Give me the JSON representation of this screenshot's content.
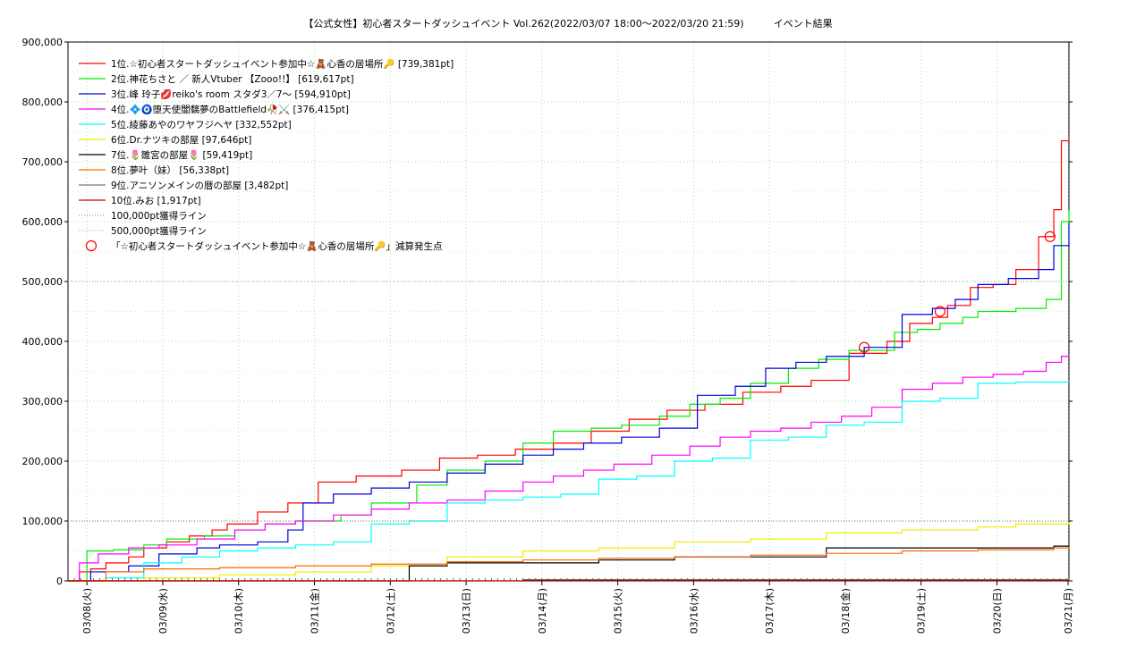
{
  "chart_data": {
    "type": "line",
    "title": "【公式女性】初心者スタートダッシュイベント Vol.262(2022/03/07 18:00～2022/03/20 21:59)　　　イベント結果",
    "xlabel": "",
    "ylabel": "",
    "xlim": [
      0,
      13.2
    ],
    "ylim": [
      0,
      900000
    ],
    "grid": true,
    "legend_position": "top-left",
    "x_tick_labels": [
      "03/08(火)",
      "03/09(水)",
      "03/10(木)",
      "03/11(金)",
      "03/12(土)",
      "03/13(日)",
      "03/14(月)",
      "03/15(火)",
      "03/16(水)",
      "03/17(木)",
      "03/18(金)",
      "03/19(土)",
      "03/20(日)",
      "03/21(月)"
    ],
    "x_tick_values": [
      0.25,
      1.25,
      2.25,
      3.25,
      4.25,
      5.25,
      6.25,
      7.25,
      8.25,
      9.25,
      10.25,
      11.25,
      12.25,
      13.25
    ],
    "y_ticks": [
      0,
      100000,
      200000,
      300000,
      400000,
      500000,
      600000,
      700000,
      800000,
      900000
    ],
    "y_tick_labels": [
      "0",
      "100,000",
      "200,000",
      "300,000",
      "400,000",
      "500,000",
      "600,000",
      "700,000",
      "800,000",
      "900,000"
    ],
    "series": [
      {
        "name": "1位.☆初心者スタートダッシュイベント参加中☆🧸心香の居場所🔑 [739,381pt]",
        "color": "#ff0000",
        "x": [
          0,
          0.15,
          0.3,
          0.5,
          0.8,
          1.0,
          1.3,
          1.6,
          1.9,
          2.1,
          2.5,
          2.9,
          3.3,
          3.8,
          4.4,
          4.9,
          5.4,
          5.9,
          6.4,
          6.9,
          7.4,
          7.9,
          8.4,
          8.9,
          9.4,
          9.8,
          10.3,
          10.8,
          11.1,
          11.4,
          11.6,
          11.9,
          12.2,
          12.5,
          12.8,
          13.0,
          13.1,
          13.2
        ],
        "y": [
          0,
          15000,
          20000,
          30000,
          40000,
          55000,
          65000,
          75000,
          85000,
          95000,
          115000,
          130000,
          165000,
          175000,
          185000,
          205000,
          210000,
          220000,
          230000,
          250000,
          270000,
          285000,
          295000,
          315000,
          325000,
          335000,
          380000,
          400000,
          430000,
          440000,
          460000,
          490000,
          495000,
          520000,
          575000,
          620000,
          735000,
          739381
        ]
      },
      {
        "name": "2位.神花ちさと ／ 新人Vtuber 【Zooo!!】 [619,617pt]",
        "color": "#00ee00",
        "x": [
          0,
          0.25,
          0.6,
          1.0,
          1.3,
          1.8,
          2.2,
          2.6,
          3.0,
          3.6,
          4.0,
          4.6,
          5.0,
          5.5,
          6.0,
          6.4,
          6.9,
          7.3,
          7.8,
          8.2,
          8.6,
          9.0,
          9.5,
          9.9,
          10.3,
          10.9,
          11.2,
          11.5,
          11.8,
          12.0,
          12.5,
          12.9,
          13.1,
          13.2
        ],
        "y": [
          0,
          50000,
          52000,
          60000,
          70000,
          75000,
          85000,
          95000,
          100000,
          110000,
          130000,
          160000,
          185000,
          200000,
          230000,
          250000,
          255000,
          260000,
          275000,
          295000,
          305000,
          330000,
          355000,
          370000,
          385000,
          415000,
          420000,
          430000,
          440000,
          450000,
          455000,
          470000,
          600000,
          619617
        ]
      },
      {
        "name": "3位.峰 玲子💋reiko's room スタダ3／7〜 [594,910pt]",
        "color": "#0000dd",
        "x": [
          0,
          0.3,
          0.8,
          1.2,
          1.7,
          2.0,
          2.5,
          2.9,
          3.1,
          3.5,
          4.0,
          4.5,
          5.0,
          5.5,
          6.0,
          6.4,
          6.8,
          7.3,
          7.8,
          8.3,
          8.8,
          9.2,
          9.6,
          10.0,
          10.5,
          11.0,
          11.4,
          11.7,
          12.0,
          12.4,
          12.8,
          13.0,
          13.2
        ],
        "y": [
          0,
          15000,
          25000,
          45000,
          55000,
          60000,
          65000,
          85000,
          130000,
          145000,
          155000,
          165000,
          180000,
          195000,
          210000,
          220000,
          230000,
          240000,
          255000,
          310000,
          325000,
          355000,
          365000,
          375000,
          390000,
          445000,
          455000,
          470000,
          495000,
          505000,
          520000,
          560000,
          594910
        ]
      },
      {
        "name": "4位.💠🧿堕天使闇黐夢のBattlefield🥀⚔️ [376,415pt]",
        "color": "#ff00ff",
        "x": [
          0,
          0.15,
          0.4,
          0.8,
          1.2,
          1.7,
          2.2,
          2.6,
          3.0,
          3.5,
          4.0,
          4.5,
          5.0,
          5.5,
          6.0,
          6.4,
          6.8,
          7.2,
          7.7,
          8.2,
          8.6,
          9.0,
          9.4,
          9.8,
          10.2,
          10.6,
          11.0,
          11.4,
          11.8,
          12.2,
          12.6,
          12.9,
          13.1,
          13.2
        ],
        "y": [
          0,
          30000,
          45000,
          55000,
          60000,
          70000,
          85000,
          95000,
          100000,
          110000,
          120000,
          130000,
          135000,
          150000,
          165000,
          175000,
          185000,
          195000,
          210000,
          225000,
          240000,
          250000,
          255000,
          265000,
          275000,
          290000,
          320000,
          330000,
          340000,
          345000,
          350000,
          365000,
          375000,
          376415
        ]
      },
      {
        "name": "5位.綾藤あやのワヤフジヘヤ [332,552pt]",
        "color": "#00ffff",
        "x": [
          0,
          0.5,
          1.0,
          1.5,
          2.0,
          2.5,
          3.0,
          3.5,
          4.0,
          4.5,
          5.0,
          5.5,
          6.0,
          6.5,
          7.0,
          7.5,
          8.0,
          8.5,
          9.0,
          9.5,
          10.0,
          10.5,
          11.0,
          11.5,
          12.0,
          12.5,
          13.2
        ],
        "y": [
          0,
          5000,
          30000,
          40000,
          50000,
          55000,
          60000,
          65000,
          95000,
          100000,
          130000,
          135000,
          140000,
          145000,
          170000,
          175000,
          200000,
          205000,
          235000,
          240000,
          260000,
          265000,
          300000,
          305000,
          330000,
          332000,
          332552
        ]
      },
      {
        "name": "6位.Dr.ナツキの部屋 [97,646pt]",
        "color": "#eeee00",
        "x": [
          0,
          1.0,
          2.0,
          3.0,
          4.0,
          5.0,
          6.0,
          7.0,
          8.0,
          9.0,
          10.0,
          11.0,
          12.0,
          12.5,
          13.2
        ],
        "y": [
          0,
          5000,
          10000,
          15000,
          25000,
          40000,
          50000,
          55000,
          65000,
          70000,
          80000,
          85000,
          90000,
          95000,
          97646
        ]
      },
      {
        "name": "7位.🌷雛宮の部屋🌷 [59,419pt]",
        "color": "#000000",
        "x": [
          0,
          4.0,
          4.5,
          5.0,
          6.0,
          7.0,
          8.0,
          9.0,
          10.0,
          11.0,
          12.0,
          13.0,
          13.2
        ],
        "y": [
          0,
          0,
          25000,
          30000,
          30000,
          35000,
          40000,
          40000,
          55000,
          55000,
          55000,
          58000,
          59419
        ]
      },
      {
        "name": "8位.夢叶（妹） [56,338pt]",
        "color": "#ff6600",
        "x": [
          0,
          0.5,
          1.0,
          2.0,
          3.0,
          4.0,
          5.0,
          6.0,
          7.0,
          8.0,
          9.0,
          10.0,
          11.0,
          12.0,
          13.0,
          13.2
        ],
        "y": [
          0,
          15000,
          20000,
          22000,
          25000,
          28000,
          32000,
          35000,
          38000,
          40000,
          43000,
          46000,
          50000,
          52000,
          55000,
          56338
        ]
      },
      {
        "name": "9位.アニソンメインの暦の部屋 [3,482pt]",
        "color": "#777777",
        "x": [
          0,
          6.0,
          13.2
        ],
        "y": [
          0,
          2000,
          3482
        ]
      },
      {
        "name": "10位.みお [1,917pt]",
        "color": "#cc0000",
        "x": [
          0,
          6.0,
          13.2
        ],
        "y": [
          0,
          1000,
          1917
        ]
      },
      {
        "name": "100,000pt獲得ライン",
        "color": "#999999",
        "style": "dotted",
        "x": [
          0,
          13.2
        ],
        "y": [
          100000,
          100000
        ]
      },
      {
        "name": "500,000pt獲得ライン",
        "color": "#bbbbbb",
        "style": "dotted",
        "x": [
          0,
          13.2
        ],
        "y": [
          500000,
          500000
        ]
      }
    ],
    "markers": {
      "name": "「☆初心者スタートダッシュイベント参加中☆🧸心香の居場所🔑」減算発生点",
      "color": "#ff0000",
      "x": [
        10.5,
        11.5,
        12.95
      ],
      "y": [
        390000,
        450000,
        575000
      ]
    }
  }
}
